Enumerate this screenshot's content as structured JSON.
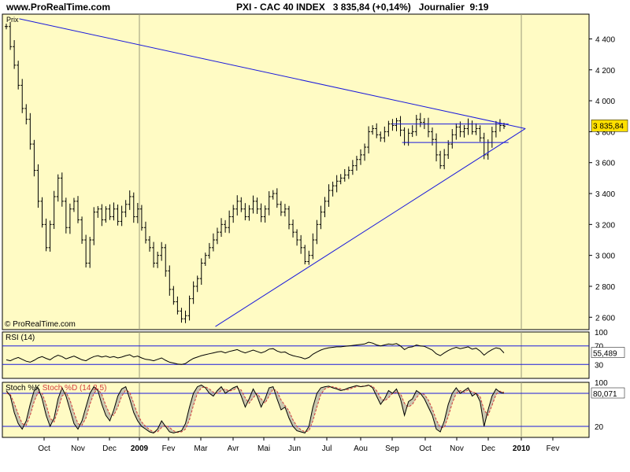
{
  "header": {
    "site": "www.ProRealTime.com",
    "title": "PXI - CAC 40 INDEX   3 835,84 (+0,14%)   Journalier  9:19"
  },
  "colors": {
    "panel_bg": "#fffbc4",
    "grid": "#9a9a7a",
    "price": "#000000",
    "trendline": "#1a1adc",
    "stoch_d": "#d23c3c",
    "fill_gray": "#9a9a9a",
    "label_box": "#ffe000"
  },
  "icons": {
    "watermark": "copyright-icon"
  },
  "chart_data": [
    {
      "type": "ohlc",
      "title": "PXI - CAC 40 INDEX",
      "panel_label": "Prix",
      "watermark": "© ProRealTime.com",
      "last_value_label": "3 835,84",
      "ylim": [
        2520,
        4560
      ],
      "y_ticks": [
        2600,
        2800,
        3000,
        3200,
        3400,
        3600,
        3800,
        4000,
        4200,
        4400
      ],
      "y_tick_labels": [
        "2 600",
        "2 800",
        "3 000",
        "3 200",
        "3 400",
        "3 600",
        "3 800",
        "4 000",
        "4 200",
        "4 400"
      ],
      "x_axis_labels": [
        "Oct",
        "Nov",
        "Dec",
        "2009",
        "Fev",
        "Mar",
        "Avr",
        "Mai",
        "Jun",
        "Jul",
        "Aou",
        "Sep",
        "Oct",
        "Nov",
        "Dec",
        "2010",
        "Fev"
      ],
      "series_close": [
        4480,
        4350,
        4230,
        4100,
        3950,
        3880,
        3720,
        3550,
        3350,
        3200,
        3050,
        3200,
        3380,
        3500,
        3350,
        3180,
        3300,
        3350,
        3230,
        3100,
        2950,
        3100,
        3280,
        3300,
        3230,
        3300,
        3250,
        3300,
        3220,
        3280,
        3330,
        3380,
        3250,
        3300,
        3180,
        3100,
        3050,
        2950,
        3000,
        3050,
        2900,
        2780,
        2700,
        2640,
        2590,
        2610,
        2720,
        2800,
        2850,
        2950,
        3000,
        3050,
        3100,
        3150,
        3200,
        3180,
        3250,
        3300,
        3350,
        3300,
        3250,
        3300,
        3350,
        3300,
        3250,
        3300,
        3380,
        3400,
        3330,
        3280,
        3300,
        3200,
        3150,
        3100,
        3050,
        2960,
        3000,
        3100,
        3200,
        3280,
        3350,
        3420,
        3450,
        3480,
        3500,
        3520,
        3550,
        3580,
        3620,
        3650,
        3700,
        3800,
        3820,
        3780,
        3760,
        3800,
        3850,
        3840,
        3870,
        3810,
        3730,
        3790,
        3800,
        3880,
        3860,
        3850,
        3800,
        3750,
        3650,
        3580,
        3650,
        3720,
        3780,
        3830,
        3800,
        3820,
        3850,
        3800,
        3820,
        3760,
        3650,
        3730,
        3800,
        3850,
        3840,
        3836
      ],
      "trendlines": [
        {
          "from": [
            "2008-09-09",
            4530
          ],
          "to": [
            "2010-01-05",
            3820
          ]
        },
        {
          "from": [
            "2009-03-15",
            2540
          ],
          "to": [
            "2010-01-05",
            3820
          ]
        },
        {
          "from": [
            "2009-09-01",
            3850
          ],
          "to": [
            "2009-12-20",
            3850
          ]
        },
        {
          "from": [
            "2009-09-10",
            3730
          ],
          "to": [
            "2009-12-20",
            3730
          ]
        }
      ]
    },
    {
      "type": "line",
      "title": "RSI (14)",
      "ylim": [
        0,
        100
      ],
      "y_ticks": [
        30,
        70,
        100
      ],
      "y_tick_labels": [
        "30",
        "70",
        "100"
      ],
      "last_value_label": "55,489",
      "values": [
        40,
        38,
        42,
        45,
        41,
        37,
        35,
        39,
        44,
        47,
        43,
        40,
        46,
        50,
        47,
        42,
        45,
        48,
        44,
        40,
        38,
        43,
        47,
        49,
        46,
        48,
        45,
        47,
        44,
        46,
        49,
        51,
        46,
        48,
        44,
        41,
        40,
        38,
        41,
        44,
        39,
        35,
        33,
        31,
        30,
        32,
        38,
        43,
        46,
        49,
        51,
        53,
        55,
        57,
        58,
        55,
        58,
        60,
        62,
        58,
        55,
        58,
        61,
        58,
        55,
        58,
        63,
        64,
        59,
        56,
        57,
        52,
        49,
        47,
        45,
        42,
        45,
        52,
        57,
        61,
        64,
        66,
        67,
        68,
        68,
        69,
        70,
        71,
        72,
        73,
        74,
        78,
        76,
        72,
        70,
        72,
        74,
        73,
        75,
        70,
        62,
        67,
        68,
        72,
        70,
        69,
        65,
        61,
        53,
        49,
        55,
        60,
        64,
        67,
        64,
        66,
        68,
        63,
        65,
        59,
        50,
        57,
        62,
        66,
        64,
        55
      ]
    },
    {
      "type": "line",
      "title": "Stoch %K  Stoch %D (14 3 5)",
      "series_names": [
        "Stoch %K",
        "Stoch %D (14 3 5)"
      ],
      "ylim": [
        0,
        100
      ],
      "y_ticks": [
        20,
        80,
        100
      ],
      "y_tick_labels": [
        "20",
        "80",
        "100"
      ],
      "last_value_label": "80,071",
      "values": [
        85,
        75,
        45,
        25,
        15,
        30,
        60,
        85,
        90,
        70,
        40,
        20,
        35,
        70,
        90,
        75,
        50,
        25,
        15,
        30,
        55,
        80,
        92,
        85,
        60,
        40,
        30,
        50,
        75,
        88,
        92,
        70,
        45,
        30,
        20,
        15,
        10,
        8,
        15,
        30,
        20,
        10,
        8,
        10,
        12,
        25,
        55,
        80,
        92,
        95,
        90,
        80,
        75,
        85,
        92,
        80,
        85,
        90,
        93,
        75,
        55,
        70,
        88,
        75,
        55,
        70,
        90,
        92,
        70,
        50,
        55,
        35,
        20,
        12,
        10,
        8,
        20,
        55,
        80,
        90,
        92,
        93,
        90,
        88,
        85,
        87,
        90,
        92,
        94,
        92,
        93,
        95,
        90,
        75,
        60,
        70,
        85,
        80,
        88,
        70,
        40,
        65,
        70,
        85,
        80,
        70,
        55,
        40,
        15,
        10,
        30,
        60,
        80,
        90,
        80,
        85,
        90,
        75,
        80,
        65,
        20,
        50,
        75,
        88,
        82,
        80
      ],
      "values_d": [
        80,
        78,
        62,
        42,
        25,
        22,
        40,
        65,
        82,
        80,
        60,
        35,
        28,
        50,
        75,
        82,
        68,
        45,
        25,
        22,
        35,
        60,
        80,
        88,
        78,
        58,
        42,
        40,
        55,
        75,
        86,
        82,
        62,
        42,
        28,
        20,
        14,
        10,
        10,
        18,
        22,
        18,
        12,
        9,
        10,
        15,
        32,
        58,
        80,
        90,
        92,
        88,
        82,
        80,
        85,
        88,
        84,
        86,
        90,
        86,
        72,
        62,
        72,
        80,
        70,
        62,
        75,
        88,
        84,
        68,
        58,
        48,
        32,
        20,
        14,
        10,
        12,
        30,
        55,
        78,
        88,
        91,
        92,
        90,
        88,
        86,
        87,
        90,
        92,
        93,
        93,
        94,
        93,
        85,
        72,
        66,
        72,
        80,
        82,
        80,
        62,
        55,
        60,
        72,
        80,
        78,
        68,
        52,
        32,
        18,
        18,
        38,
        62,
        80,
        85,
        82,
        86,
        83,
        80,
        74,
        50,
        40,
        58,
        78,
        84,
        82
      ]
    }
  ]
}
